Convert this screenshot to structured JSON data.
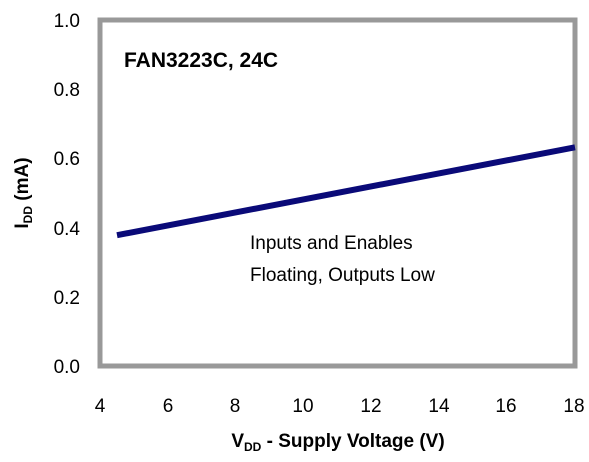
{
  "chart_data": {
    "type": "line",
    "title": "FAN3223C, 24C",
    "xlabel": {
      "main": "V",
      "sub": "DD",
      "rest": " - Supply Voltage (V)"
    },
    "ylabel": {
      "main": "I",
      "sub": "DD",
      "rest": " (mA)"
    },
    "xlim": [
      4,
      18
    ],
    "ylim": [
      0.0,
      1.0
    ],
    "xticks": [
      "4",
      "6",
      "8",
      "10",
      "12",
      "14",
      "16",
      "18"
    ],
    "yticks": [
      "0.0",
      "0.2",
      "0.4",
      "0.6",
      "0.8",
      "1.0"
    ],
    "grid": false,
    "annotation": [
      "Inputs and Enables",
      "Floating, Outputs Low"
    ],
    "series": [
      {
        "color": "#0a0a78",
        "x": [
          4.5,
          18
        ],
        "y": [
          0.378,
          0.632
        ]
      }
    ]
  }
}
